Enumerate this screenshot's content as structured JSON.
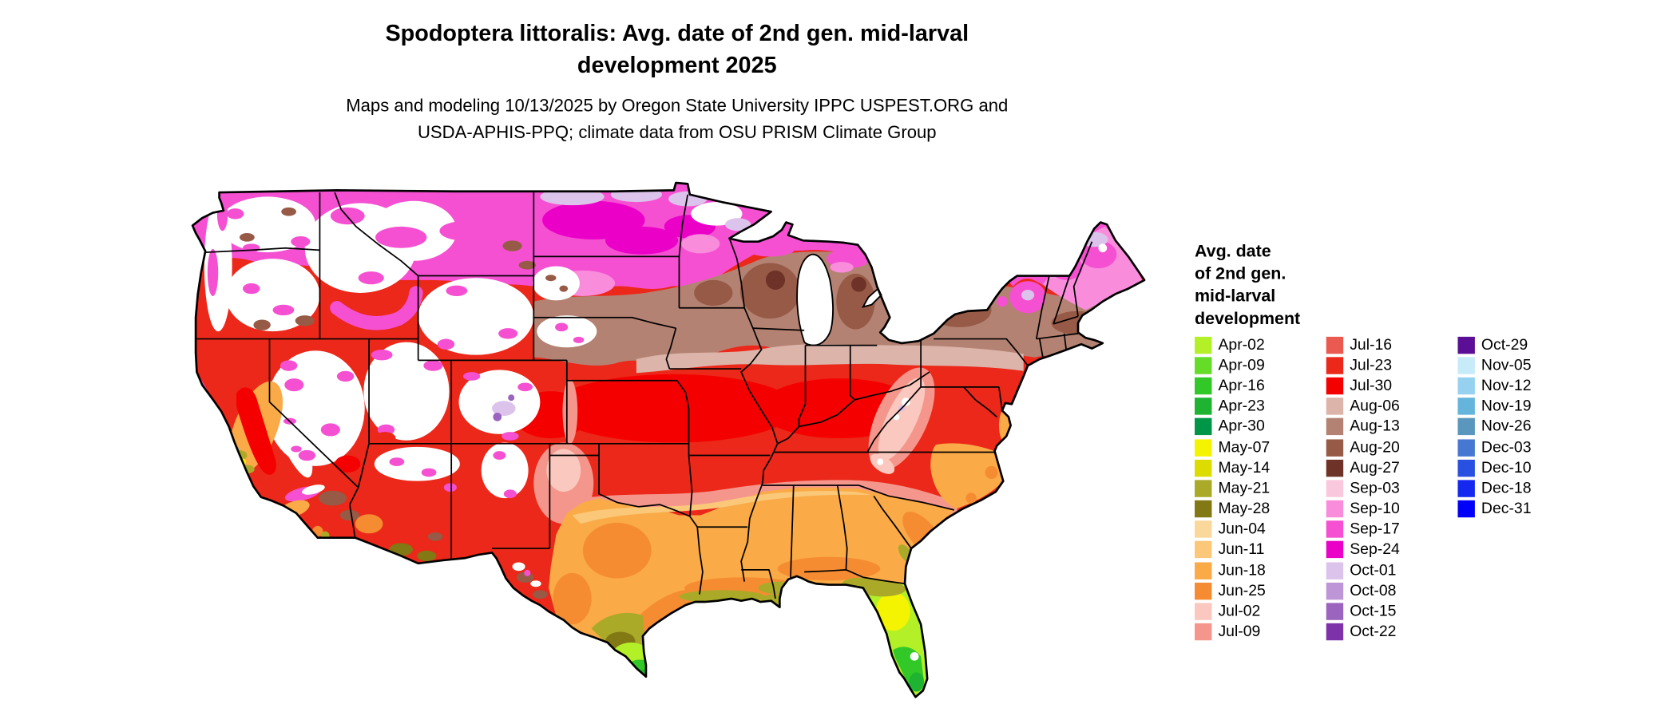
{
  "title": {
    "line1": "Spodoptera littoralis: Avg. date of 2nd gen. mid-larval",
    "line2": "development 2025"
  },
  "subtitle": {
    "line1": "Maps and modeling 10/13/2025 by Oregon State University IPPC USPEST.ORG and",
    "line2": "USDA-APHIS-PPQ; climate data from OSU PRISM Climate Group"
  },
  "map": {
    "region": "Contiguous United States",
    "background": "#ffffff",
    "no_data_color": "#ffffff",
    "border_color": "#000000"
  },
  "legend": {
    "title_lines": [
      "Avg. date",
      "of 2nd gen.",
      "mid-larval",
      "development"
    ],
    "columns": [
      15,
      15,
      9
    ],
    "entries": [
      {
        "label": "Apr-02",
        "color": "#b4f028"
      },
      {
        "label": "Apr-09",
        "color": "#64dc28"
      },
      {
        "label": "Apr-16",
        "color": "#32c828"
      },
      {
        "label": "Apr-23",
        "color": "#1eb432"
      },
      {
        "label": "Apr-30",
        "color": "#009648"
      },
      {
        "label": "May-07",
        "color": "#f4f400"
      },
      {
        "label": "May-14",
        "color": "#dcdc00"
      },
      {
        "label": "May-21",
        "color": "#aaaa28"
      },
      {
        "label": "May-28",
        "color": "#827814"
      },
      {
        "label": "Jun-04",
        "color": "#fad89b"
      },
      {
        "label": "Jun-11",
        "color": "#fac878"
      },
      {
        "label": "Jun-18",
        "color": "#faaa46"
      },
      {
        "label": "Jun-25",
        "color": "#f58c32"
      },
      {
        "label": "Jul-02",
        "color": "#fac8be"
      },
      {
        "label": "Jul-09",
        "color": "#f5968c"
      },
      {
        "label": "Jul-16",
        "color": "#eb5a50"
      },
      {
        "label": "Jul-23",
        "color": "#eb2819"
      },
      {
        "label": "Jul-30",
        "color": "#f50000"
      },
      {
        "label": "Aug-06",
        "color": "#dcb4aa"
      },
      {
        "label": "Aug-13",
        "color": "#b48273"
      },
      {
        "label": "Aug-20",
        "color": "#965a46"
      },
      {
        "label": "Aug-27",
        "color": "#6e3228"
      },
      {
        "label": "Sep-03",
        "color": "#fac8dc"
      },
      {
        "label": "Sep-10",
        "color": "#fa8cdc"
      },
      {
        "label": "Sep-17",
        "color": "#f550d2"
      },
      {
        "label": "Sep-24",
        "color": "#eb00c8"
      },
      {
        "label": "Oct-01",
        "color": "#dcc3eb"
      },
      {
        "label": "Oct-08",
        "color": "#be96d7"
      },
      {
        "label": "Oct-15",
        "color": "#9b64be"
      },
      {
        "label": "Oct-22",
        "color": "#7d32aa"
      },
      {
        "label": "Oct-29",
        "color": "#5a0f96"
      },
      {
        "label": "Nov-05",
        "color": "#c8ebfa"
      },
      {
        "label": "Nov-12",
        "color": "#96d2f0"
      },
      {
        "label": "Nov-19",
        "color": "#64b4dc"
      },
      {
        "label": "Nov-26",
        "color": "#5a96be"
      },
      {
        "label": "Dec-03",
        "color": "#4678d2"
      },
      {
        "label": "Dec-10",
        "color": "#2850e1"
      },
      {
        "label": "Dec-18",
        "color": "#1428f0"
      },
      {
        "label": "Dec-31",
        "color": "#0000fa"
      }
    ]
  }
}
